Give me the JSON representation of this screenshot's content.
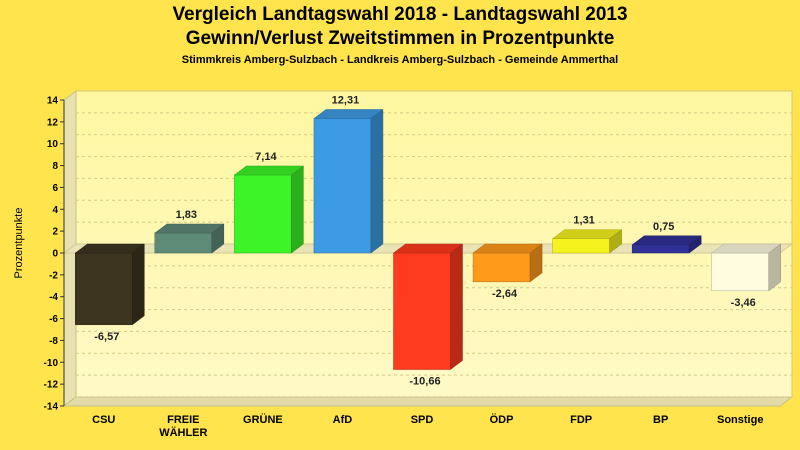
{
  "chart_data": {
    "type": "bar",
    "title": "Vergleich Landtagswahl 2018 - Landtagswahl 2013",
    "subtitle": "Gewinn/Verlust Zweitstimmen in Prozentpunkte",
    "subtitle2": "Stimmkreis Amberg-Sulzbach - Landkreis Amberg-Sulzbach - Gemeinde Ammerthal",
    "ylabel": "Prozentpunkte",
    "ylim": [
      -14,
      14
    ],
    "yticks": [
      "14",
      "12",
      "10",
      "8",
      "6",
      "4",
      "2",
      "0",
      "-2",
      "-4",
      "-6",
      "-8",
      "-10",
      "-12",
      "-14"
    ],
    "categories": [
      [
        "CSU"
      ],
      [
        "FREIE",
        "WÄHLER"
      ],
      [
        "GRÜNE"
      ],
      [
        "AfD"
      ],
      [
        "SPD"
      ],
      [
        "ÖDP"
      ],
      [
        "FDP"
      ],
      [
        "BP"
      ],
      [
        "Sonstige"
      ]
    ],
    "values": [
      -6.57,
      1.83,
      7.14,
      12.31,
      -10.66,
      -2.64,
      1.31,
      0.75,
      -3.46
    ],
    "value_labels": [
      "-6,57",
      "1,83",
      "7,14",
      "12,31",
      "-10,66",
      "-2,64",
      "1,31",
      "0,75",
      "-3,46"
    ],
    "colors": [
      "#3D3520",
      "#5E8A78",
      "#3CF427",
      "#3C9BE3",
      "#FF3A1F",
      "#FF9A1A",
      "#F5F21E",
      "#303099",
      "#FFFCE0"
    ],
    "grid": true
  }
}
